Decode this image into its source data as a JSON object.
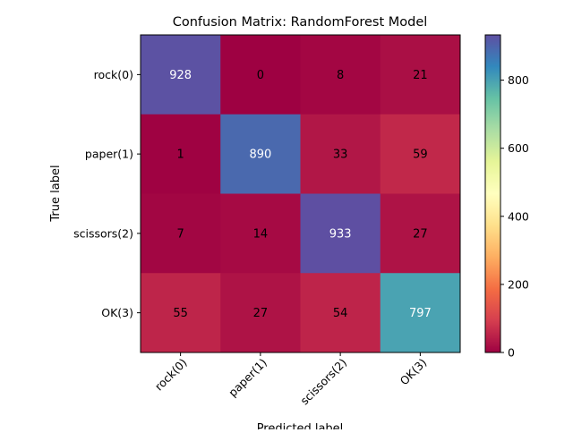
{
  "chart_data": {
    "type": "heatmap",
    "title": "Confusion Matrix: RandomForest Model",
    "xlabel": "Predicted label",
    "ylabel": "True label",
    "x_categories": [
      "rock(0)",
      "paper(1)",
      "scissors(2)",
      "OK(3)"
    ],
    "y_categories": [
      "rock(0)",
      "paper(1)",
      "scissors(2)",
      "OK(3)"
    ],
    "matrix": [
      [
        928,
        0,
        8,
        21
      ],
      [
        1,
        890,
        33,
        59
      ],
      [
        7,
        14,
        933,
        27
      ],
      [
        55,
        27,
        54,
        797
      ]
    ],
    "colormap": "Spectral",
    "value_range": [
      0,
      933
    ],
    "colorbar": {
      "ticks": [
        0,
        200,
        400,
        600,
        800
      ]
    },
    "x_tick_rotation": "45 degrees",
    "grid": false
  }
}
